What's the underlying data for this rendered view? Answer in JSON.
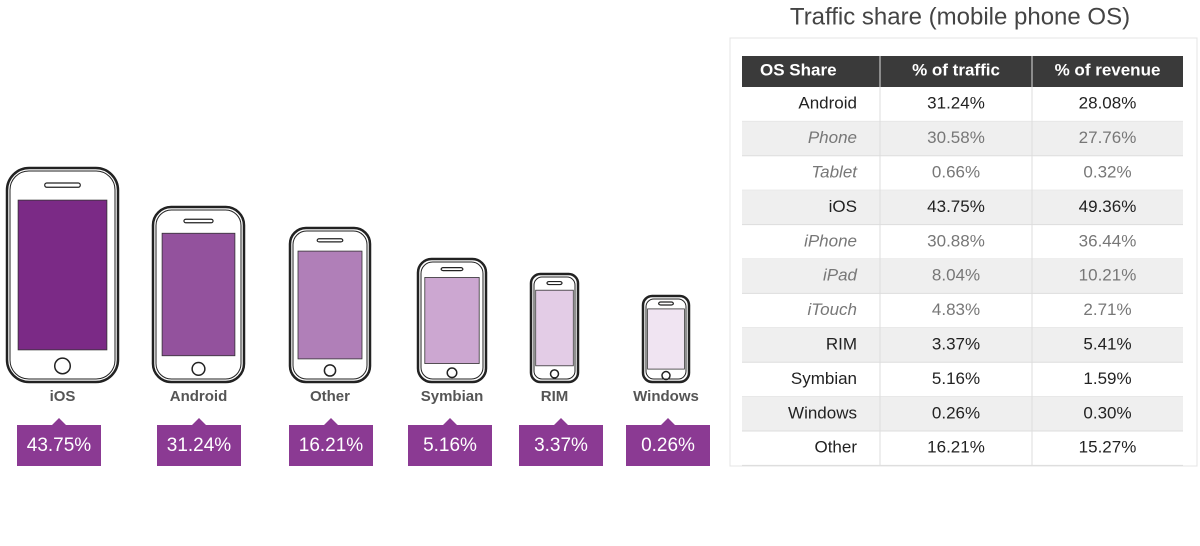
{
  "phones": [
    {
      "label": "iOS",
      "value": "43.75%"
    },
    {
      "label": "Android",
      "value": "31.24%"
    },
    {
      "label": "Other",
      "value": "16.21%"
    },
    {
      "label": "Symbian",
      "value": "5.16%"
    },
    {
      "label": "RIM",
      "value": "3.37%"
    },
    {
      "label": "Windows",
      "value": "0.26%"
    }
  ],
  "table": {
    "title": "Traffic share (mobile phone OS)",
    "header": [
      "OS Share",
      "% of traffic",
      "% of revenue"
    ],
    "rows": [
      [
        "Android",
        "31.24%",
        "28.08%"
      ],
      [
        "Phone",
        "30.58%",
        "27.76%"
      ],
      [
        "Tablet",
        "0.66%",
        "0.32%"
      ],
      [
        "iOS",
        "43.75%",
        "49.36%"
      ],
      [
        "iPhone",
        "30.88%",
        "36.44%"
      ],
      [
        "iPad",
        "8.04%",
        "10.21%"
      ],
      [
        "iTouch",
        "4.83%",
        "2.71%"
      ],
      [
        "RIM",
        "3.37%",
        "5.41%"
      ],
      [
        "Symbian",
        "5.16%",
        "1.59%"
      ],
      [
        "Windows",
        "0.26%",
        "0.30%"
      ],
      [
        "Other",
        "16.21%",
        "15.27%"
      ]
    ]
  }
}
